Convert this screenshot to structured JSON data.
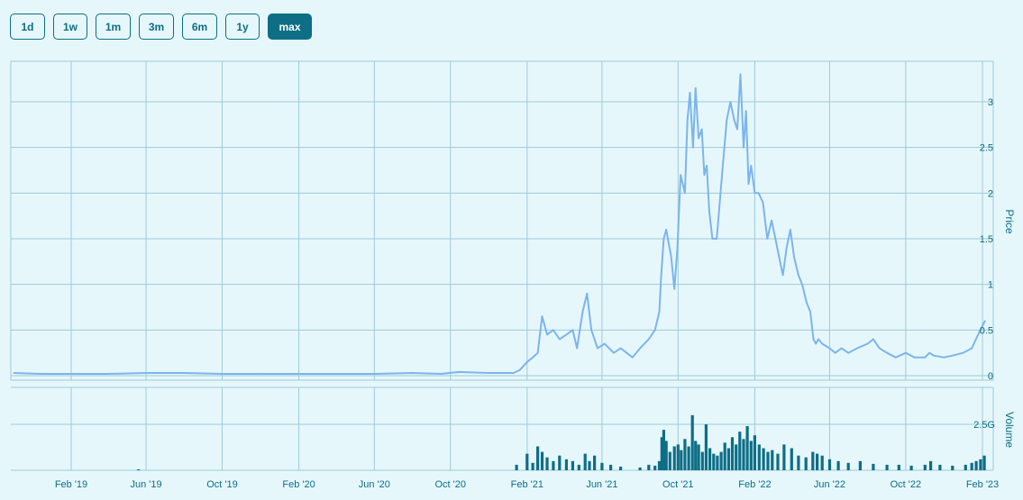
{
  "range_selector": {
    "buttons": [
      {
        "label": "1d",
        "active": false
      },
      {
        "label": "1w",
        "active": false
      },
      {
        "label": "1m",
        "active": false
      },
      {
        "label": "3m",
        "active": false
      },
      {
        "label": "6m",
        "active": false
      },
      {
        "label": "1y",
        "active": false
      },
      {
        "label": "max",
        "active": true
      }
    ]
  },
  "colors": {
    "background": "#e6f7fc",
    "grid": "#9fc9d8",
    "price_line": "#7cb5ec",
    "volume_bars": "#0d6e86",
    "accent": "#0d6e86"
  },
  "chart_data": [
    {
      "type": "line",
      "ylabel": "Price",
      "ylim": [
        0,
        3.3
      ],
      "yticks": [
        {
          "value": 0,
          "label": "0"
        },
        {
          "value": 0.5,
          "label": "0.5"
        },
        {
          "value": 1,
          "label": "1"
        },
        {
          "value": 1.5,
          "label": "1.5"
        },
        {
          "value": 2,
          "label": "2"
        },
        {
          "value": 2.5,
          "label": "2.5"
        },
        {
          "value": 3,
          "label": "3"
        }
      ],
      "xlim": [
        "2018-11-01",
        "2023-02-05"
      ],
      "xticks": [
        {
          "date": "2019-02-01",
          "label": "Feb '19"
        },
        {
          "date": "2019-06-01",
          "label": "Jun '19"
        },
        {
          "date": "2019-10-01",
          "label": "Oct '19"
        },
        {
          "date": "2020-02-01",
          "label": "Feb '20"
        },
        {
          "date": "2020-06-01",
          "label": "Jun '20"
        },
        {
          "date": "2020-10-01",
          "label": "Oct '20"
        },
        {
          "date": "2021-02-01",
          "label": "Feb '21"
        },
        {
          "date": "2021-06-01",
          "label": "Jun '21"
        },
        {
          "date": "2021-10-01",
          "label": "Oct '21"
        },
        {
          "date": "2022-02-01",
          "label": "Feb '22"
        },
        {
          "date": "2022-06-01",
          "label": "Jun '22"
        },
        {
          "date": "2022-10-01",
          "label": "Oct '22"
        },
        {
          "date": "2023-02-01",
          "label": "Feb '23"
        }
      ],
      "grid": true,
      "series": [
        {
          "x": [
            "2018-11-01",
            "2018-12-15",
            "2019-02-01",
            "2019-04-01",
            "2019-06-01",
            "2019-08-01",
            "2019-10-01",
            "2019-12-01",
            "2020-02-01",
            "2020-04-01",
            "2020-06-01",
            "2020-08-01",
            "2020-09-15",
            "2020-10-15",
            "2020-12-01",
            "2021-01-10",
            "2021-01-20",
            "2021-02-01",
            "2021-02-10",
            "2021-02-18",
            "2021-02-25",
            "2021-03-05",
            "2021-03-15",
            "2021-03-25",
            "2021-04-05",
            "2021-04-15",
            "2021-04-22",
            "2021-05-01",
            "2021-05-08",
            "2021-05-15",
            "2021-05-25",
            "2021-06-05",
            "2021-06-20",
            "2021-07-01",
            "2021-07-20",
            "2021-08-01",
            "2021-08-15",
            "2021-08-25",
            "2021-09-01",
            "2021-09-04",
            "2021-09-08",
            "2021-09-12",
            "2021-09-20",
            "2021-09-25",
            "2021-09-30",
            "2021-10-05",
            "2021-10-12",
            "2021-10-16",
            "2021-10-20",
            "2021-10-25",
            "2021-10-29",
            "2021-11-03",
            "2021-11-08",
            "2021-11-12",
            "2021-11-16",
            "2021-11-20",
            "2021-11-25",
            "2021-12-02",
            "2021-12-08",
            "2021-12-13",
            "2021-12-18",
            "2021-12-24",
            "2021-12-30",
            "2022-01-04",
            "2022-01-09",
            "2022-01-14",
            "2022-01-18",
            "2022-01-22",
            "2022-01-26",
            "2022-02-01",
            "2022-02-07",
            "2022-02-14",
            "2022-02-21",
            "2022-02-28",
            "2022-03-06",
            "2022-03-12",
            "2022-03-18",
            "2022-03-24",
            "2022-03-30",
            "2022-04-05",
            "2022-04-12",
            "2022-04-18",
            "2022-04-25",
            "2022-05-01",
            "2022-05-06",
            "2022-05-10",
            "2022-05-14",
            "2022-05-20",
            "2022-06-01",
            "2022-06-10",
            "2022-06-20",
            "2022-07-01",
            "2022-07-15",
            "2022-08-01",
            "2022-08-10",
            "2022-08-20",
            "2022-09-01",
            "2022-09-15",
            "2022-10-01",
            "2022-10-15",
            "2022-11-01",
            "2022-11-08",
            "2022-11-15",
            "2022-12-01",
            "2022-12-15",
            "2023-01-01",
            "2023-01-15",
            "2023-01-25",
            "2023-02-05"
          ],
          "y": [
            0.03,
            0.02,
            0.02,
            0.02,
            0.03,
            0.03,
            0.02,
            0.02,
            0.02,
            0.02,
            0.02,
            0.03,
            0.02,
            0.04,
            0.03,
            0.03,
            0.06,
            0.15,
            0.2,
            0.25,
            0.65,
            0.45,
            0.5,
            0.4,
            0.45,
            0.5,
            0.3,
            0.7,
            0.9,
            0.5,
            0.3,
            0.35,
            0.25,
            0.3,
            0.2,
            0.3,
            0.4,
            0.5,
            0.7,
            1.1,
            1.5,
            1.6,
            1.3,
            0.95,
            1.4,
            2.2,
            2.0,
            2.8,
            3.1,
            2.5,
            3.15,
            2.6,
            2.7,
            2.2,
            2.3,
            1.8,
            1.5,
            1.5,
            2.0,
            2.4,
            2.8,
            3.0,
            2.8,
            2.7,
            3.3,
            2.5,
            2.9,
            2.1,
            2.3,
            2.0,
            2.0,
            1.9,
            1.5,
            1.7,
            1.5,
            1.3,
            1.1,
            1.4,
            1.6,
            1.3,
            1.1,
            1.0,
            0.8,
            0.7,
            0.4,
            0.35,
            0.4,
            0.35,
            0.3,
            0.25,
            0.3,
            0.25,
            0.3,
            0.35,
            0.4,
            0.3,
            0.25,
            0.2,
            0.25,
            0.2,
            0.2,
            0.25,
            0.22,
            0.2,
            0.22,
            0.25,
            0.3,
            0.45,
            0.6
          ]
        }
      ]
    },
    {
      "type": "bar",
      "ylabel": "Volume",
      "ylim": [
        0,
        3.5
      ],
      "yticks": [
        {
          "value": 2.5,
          "label": "2.5G"
        }
      ],
      "grid": true,
      "series": [
        {
          "x": [
            "2019-05-20",
            "2021-01-15",
            "2021-02-01",
            "2021-02-10",
            "2021-02-18",
            "2021-02-25",
            "2021-03-05",
            "2021-03-15",
            "2021-03-25",
            "2021-04-05",
            "2021-04-15",
            "2021-04-25",
            "2021-05-05",
            "2021-05-12",
            "2021-05-20",
            "2021-06-01",
            "2021-06-15",
            "2021-07-01",
            "2021-08-01",
            "2021-08-15",
            "2021-08-25",
            "2021-09-01",
            "2021-09-05",
            "2021-09-08",
            "2021-09-12",
            "2021-09-18",
            "2021-09-25",
            "2021-10-01",
            "2021-10-06",
            "2021-10-12",
            "2021-10-18",
            "2021-10-24",
            "2021-10-29",
            "2021-11-03",
            "2021-11-09",
            "2021-11-15",
            "2021-11-21",
            "2021-11-27",
            "2021-12-03",
            "2021-12-09",
            "2021-12-15",
            "2021-12-21",
            "2021-12-27",
            "2022-01-02",
            "2022-01-08",
            "2022-01-14",
            "2022-01-20",
            "2022-01-26",
            "2022-02-01",
            "2022-02-08",
            "2022-02-15",
            "2022-02-22",
            "2022-03-01",
            "2022-03-10",
            "2022-03-20",
            "2022-04-01",
            "2022-04-12",
            "2022-04-24",
            "2022-05-05",
            "2022-05-12",
            "2022-05-20",
            "2022-06-01",
            "2022-06-15",
            "2022-07-01",
            "2022-07-20",
            "2022-08-10",
            "2022-09-01",
            "2022-09-20",
            "2022-10-10",
            "2022-11-01",
            "2022-11-10",
            "2022-11-25",
            "2022-12-15",
            "2023-01-05",
            "2023-01-15",
            "2023-01-22",
            "2023-01-29",
            "2023-02-04"
          ],
          "y": [
            0.05,
            0.3,
            0.9,
            0.4,
            1.3,
            1.0,
            0.7,
            0.5,
            0.8,
            0.6,
            0.5,
            0.3,
            0.9,
            0.5,
            0.8,
            0.4,
            0.3,
            0.2,
            0.15,
            0.3,
            0.25,
            0.5,
            1.8,
            2.2,
            1.6,
            1.0,
            1.3,
            1.4,
            1.1,
            1.7,
            1.3,
            3.0,
            1.6,
            1.4,
            1.0,
            2.5,
            1.2,
            0.9,
            0.8,
            1.0,
            1.5,
            1.2,
            1.8,
            1.4,
            2.1,
            1.7,
            2.4,
            1.6,
            1.9,
            1.4,
            1.2,
            1.0,
            1.1,
            0.9,
            1.4,
            1.2,
            0.8,
            0.7,
            1.0,
            0.9,
            0.8,
            0.6,
            0.5,
            0.4,
            0.5,
            0.35,
            0.3,
            0.3,
            0.25,
            0.3,
            0.5,
            0.3,
            0.25,
            0.3,
            0.4,
            0.5,
            0.6,
            0.8
          ]
        }
      ]
    }
  ]
}
